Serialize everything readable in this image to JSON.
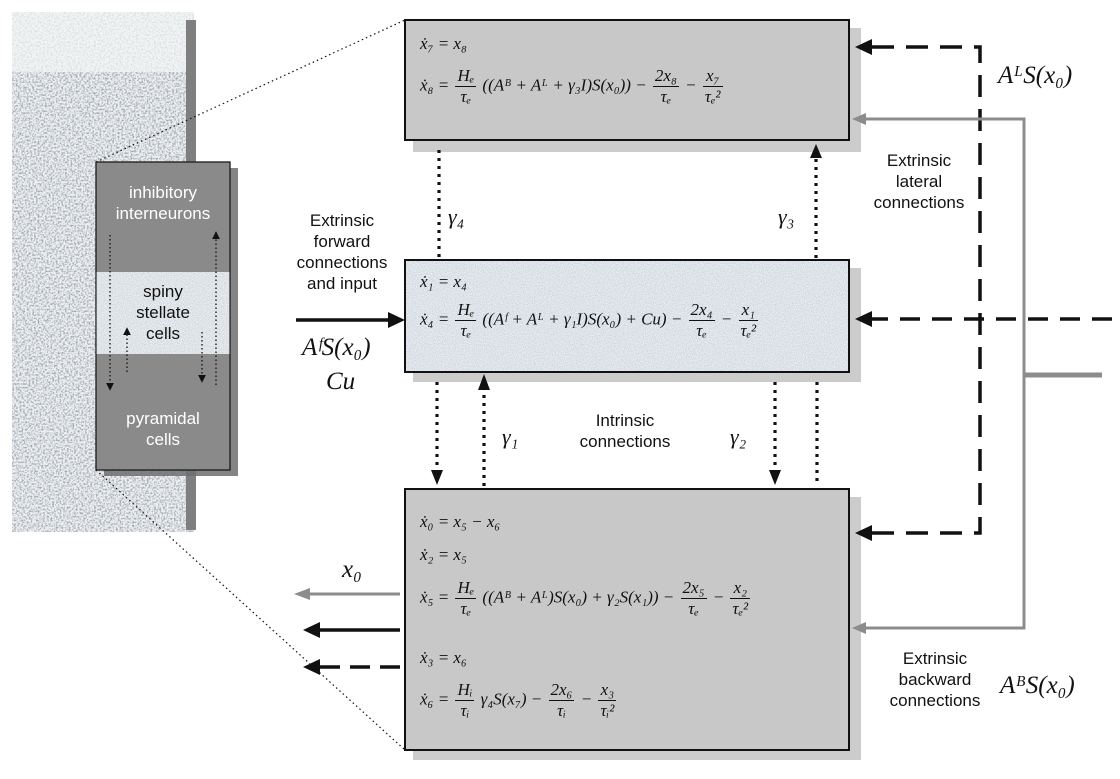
{
  "column": {
    "inhibitory": [
      "inhibitory",
      "interneurons"
    ],
    "stellate": [
      "spiny",
      "stellate",
      "cells"
    ],
    "pyramidal": [
      "pyramidal",
      "cells"
    ]
  },
  "boxes": {
    "top": [
      {
        "lhs": "ẋ₇ = x₈"
      },
      {
        "lhs": "ẋ₈ =",
        "f1n": "Hₑ",
        "f1d": "τₑ",
        "mid": "((Aᴮ + Aᴸ + γ₃I)S(x₀)) −",
        "f2n": "2x₈",
        "f2d": "τₑ",
        "minus": "−",
        "f3n": "x₇",
        "f3d": "τₑ²"
      }
    ],
    "middle": [
      {
        "lhs": "ẋ₁ = x₄"
      },
      {
        "lhs": "ẋ₄ =",
        "f1n": "Hₑ",
        "f1d": "τₑ",
        "mid": "((Aᶠ + Aᴸ + γ₁I)S(x₀) + Cu) −",
        "f2n": "2x₄",
        "f2d": "τₑ",
        "minus": "−",
        "f3n": "x₁",
        "f3d": "τₑ²"
      }
    ],
    "bottom": [
      {
        "lhs": "ẋ₀ = x₅ − x₆"
      },
      {
        "lhs": "ẋ₂ = x₅"
      },
      {
        "lhs": "ẋ₅ =",
        "f1n": "Hₑ",
        "f1d": "τₑ",
        "mid": "((Aᴮ + Aᴸ)S(x₀) + γ₂S(x₁)) −",
        "f2n": "2x₅",
        "f2d": "τₑ",
        "minus": "−",
        "f3n": "x₂",
        "f3d": "τₑ²"
      },
      {
        "lhs": "ẋ₃ = x₆"
      },
      {
        "lhs": "ẋ₆ =",
        "f1n": "Hᵢ",
        "f1d": "τᵢ",
        "mid": "γ₄S(x₇) −",
        "f2n": "2x₆",
        "f2d": "τᵢ",
        "minus": "−",
        "f3n": "x₃",
        "f3d": "τᵢ²"
      }
    ]
  },
  "labels": {
    "forward": [
      "Extrinsic",
      "forward",
      "connections",
      "and input"
    ],
    "forward_math1": "AᶠS(x₀)",
    "forward_math2": "Cu",
    "lateral": [
      "Extrinsic",
      "lateral",
      "connections"
    ],
    "lateral_math": "AᴸS(x₀)",
    "backward": [
      "Extrinsic",
      "backward",
      "connections"
    ],
    "backward_math": "AᴮS(x₀)",
    "intrinsic": [
      "Intrinsic",
      "connections"
    ],
    "gamma1": "γ₁",
    "gamma2": "γ₂",
    "gamma3": "γ₃",
    "gamma4": "γ₄",
    "output": "x₀"
  },
  "colors": {
    "box_fill": "#c8c8c8",
    "speckle_fill": "#e6ecf0",
    "column_fill": "#8a8a8a",
    "grey_line": "#8c8c8c",
    "black": "#111111"
  }
}
